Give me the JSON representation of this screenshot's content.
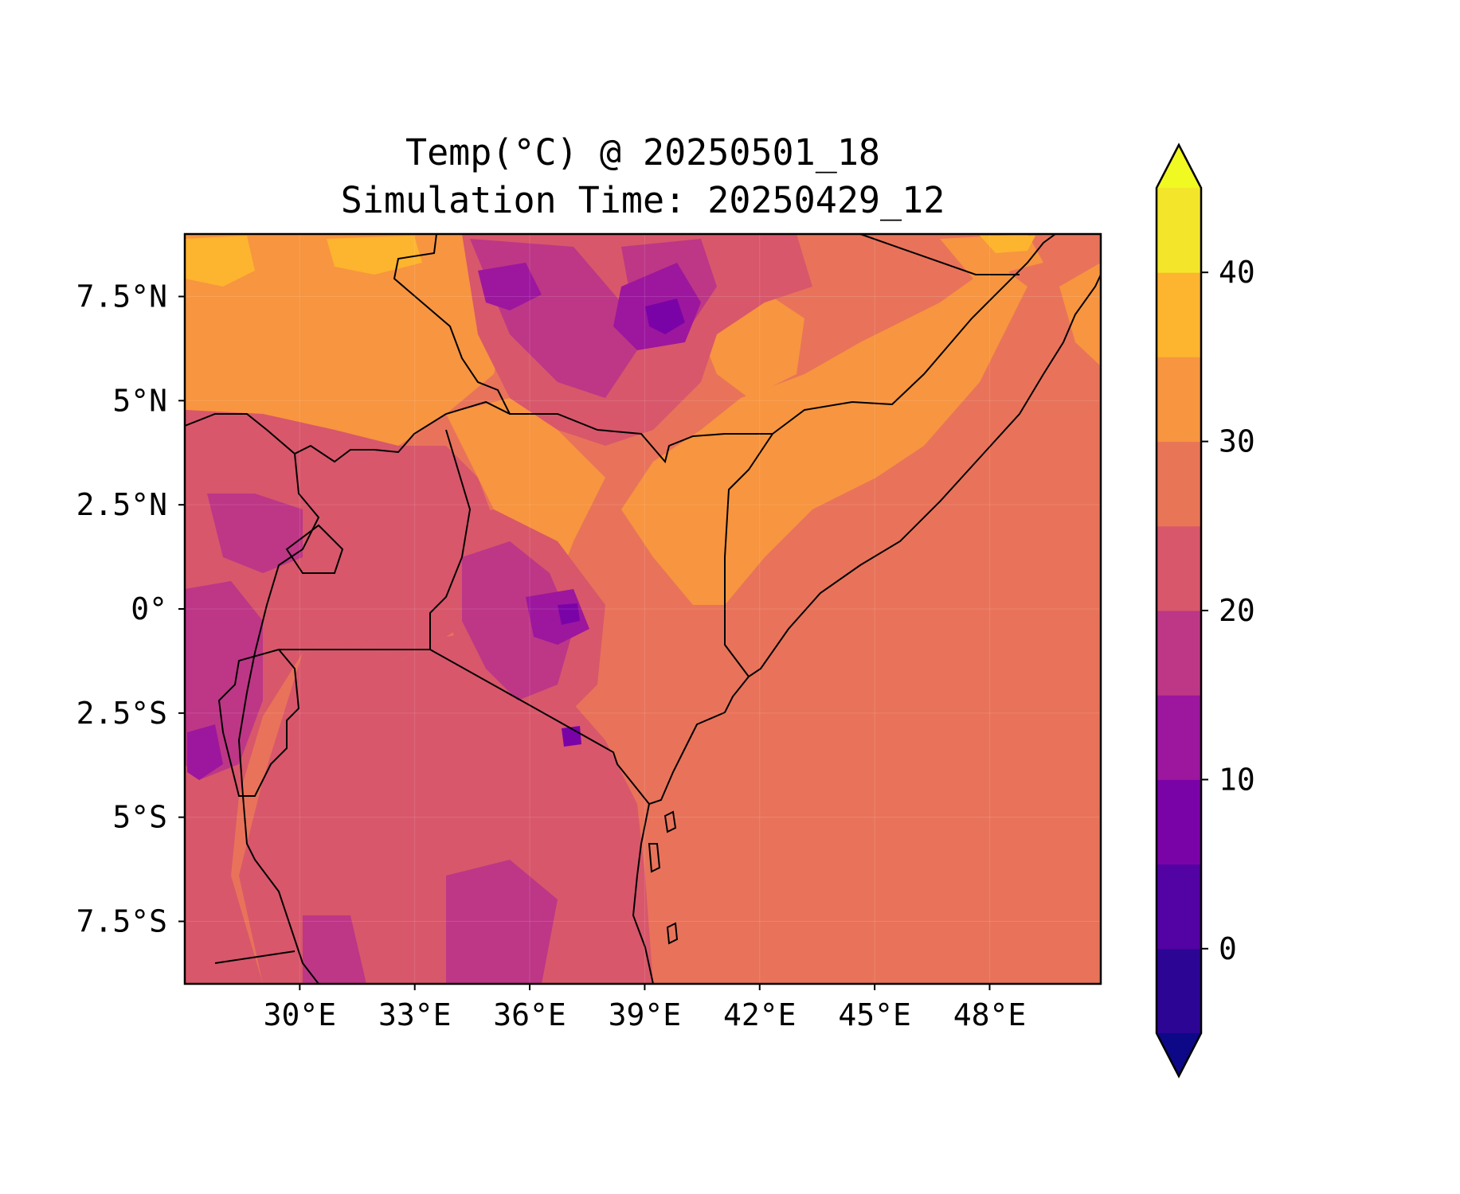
{
  "title": "Temp(°C) @ 20250501_18",
  "subtitle": "Simulation Time: 20250429_12",
  "map": {
    "lon_range": [
      27.0,
      50.9
    ],
    "lat_range": [
      -9.0,
      9.0
    ],
    "x_ticks": [
      {
        "value": 30,
        "label": "30°E"
      },
      {
        "value": 33,
        "label": "33°E"
      },
      {
        "value": 36,
        "label": "36°E"
      },
      {
        "value": 39,
        "label": "39°E"
      },
      {
        "value": 42,
        "label": "42°E"
      },
      {
        "value": 45,
        "label": "45°E"
      },
      {
        "value": 48,
        "label": "48°E"
      }
    ],
    "y_ticks": [
      {
        "value": 7.5,
        "label": "7.5°N"
      },
      {
        "value": 5,
        "label": "5°N"
      },
      {
        "value": 2.5,
        "label": "2.5°N"
      },
      {
        "value": 0,
        "label": "0°"
      },
      {
        "value": -2.5,
        "label": "2.5°S"
      },
      {
        "value": -5,
        "label": "5°S"
      },
      {
        "value": -7.5,
        "label": "7.5°S"
      }
    ],
    "background_color": "#e8735a"
  },
  "colorbar": {
    "range": [
      -5,
      45
    ],
    "bands": [
      {
        "from": -5,
        "to": 0,
        "color": "#2c0594"
      },
      {
        "from": 0,
        "to": 5,
        "color": "#5302a3"
      },
      {
        "from": 5,
        "to": 10,
        "color": "#7a03a8"
      },
      {
        "from": 10,
        "to": 15,
        "color": "#9c179e"
      },
      {
        "from": 15,
        "to": 20,
        "color": "#bd3786"
      },
      {
        "from": 20,
        "to": 25,
        "color": "#d8576b"
      },
      {
        "from": 25,
        "to": 30,
        "color": "#e97557"
      },
      {
        "from": 30,
        "to": 35,
        "color": "#f79540"
      },
      {
        "from": 35,
        "to": 40,
        "color": "#fdb42f"
      },
      {
        "from": 40,
        "to": 45,
        "color": "#f3e62a"
      }
    ],
    "extend_min_color": "#0d0887",
    "extend_max_color": "#f0f921",
    "ticks": [
      {
        "value": 0,
        "label": "0"
      },
      {
        "value": 10,
        "label": "10"
      },
      {
        "value": 20,
        "label": "20"
      },
      {
        "value": 30,
        "label": "30"
      },
      {
        "value": 40,
        "label": "40"
      }
    ]
  }
}
